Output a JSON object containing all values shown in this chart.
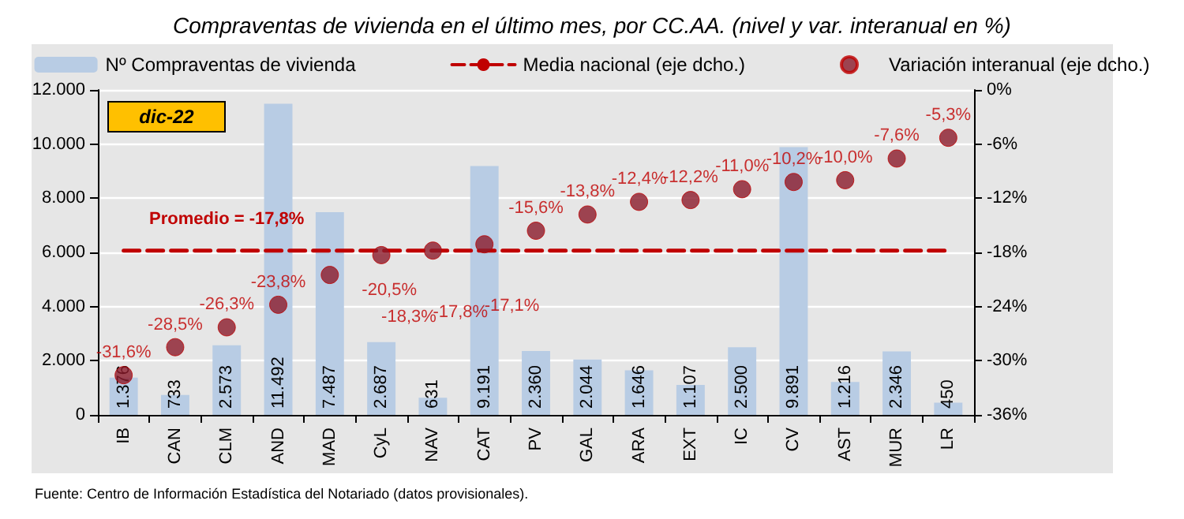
{
  "chart_data": {
    "type": "bar",
    "title": "Compraventas de vivienda en el último mes, por CC.AA. (nivel y var. interanual en %)",
    "categories": [
      "IB",
      "CAN",
      "CLM",
      "AND",
      "MAD",
      "CyL",
      "NAV",
      "CAT",
      "PV",
      "GAL",
      "ARA",
      "EXT",
      "IC",
      "CV",
      "AST",
      "MUR",
      "LR"
    ],
    "series": [
      {
        "name": "Nº Compraventas de vivienda",
        "color": "#b8cce4",
        "values": [
          1376,
          733,
          2573,
          11492,
          7487,
          2687,
          631,
          9191,
          2360,
          2044,
          1646,
          1107,
          2500,
          9891,
          1216,
          2346,
          450
        ],
        "value_labels": [
          "1.376",
          "733",
          "2.573",
          "11.492",
          "7.487",
          "2.687",
          "631",
          "9.191",
          "2.360",
          "2.044",
          "1.646",
          "1.107",
          "2.500",
          "9.891",
          "1.216",
          "2.346",
          "450"
        ]
      },
      {
        "name": "Media nacional (eje dcho.)",
        "type": "line",
        "axis": "y2",
        "color": "#c00000",
        "line_style": "dashed",
        "values": [
          -17.8,
          -17.8,
          -17.8,
          -17.8,
          -17.8,
          -17.8,
          -17.8,
          -17.8,
          -17.8,
          -17.8,
          -17.8,
          -17.8,
          -17.8,
          -17.8,
          -17.8,
          -17.8,
          -17.8
        ]
      },
      {
        "name": "Variación interanual (eje dcho.)",
        "type": "scatter",
        "marker": "circle",
        "axis": "y2",
        "color": "#8b1a2b",
        "values": [
          -31.6,
          -28.5,
          -26.3,
          -23.8,
          -20.5,
          -18.3,
          -17.8,
          -17.1,
          -15.6,
          -13.8,
          -12.4,
          -12.2,
          -11.0,
          -10.2,
          -10.0,
          -7.6,
          -5.3
        ],
        "value_labels": [
          "-31,6%",
          "-28,5%",
          "-26,3%",
          "-23,8%",
          "-20,5%",
          "-18,3%",
          "-17,8%",
          "-17,1%",
          "-15,6%",
          "-13,8%",
          "-12,4%",
          "-12,2%",
          "-11,0%",
          "-10,2%",
          "-10,0%",
          "-7,6%",
          "-5,3%"
        ]
      }
    ],
    "ylim": [
      0,
      12000
    ],
    "yticks": [
      0,
      {
        "value": 2000,
        "label": "2.000"
      },
      {
        "value": 4000,
        "label": "4.000"
      },
      {
        "value": 6000,
        "label": "6.000"
      },
      {
        "value": 8000,
        "label": "8.000"
      },
      {
        "value": 10000,
        "label": "10.000"
      },
      {
        "value": 12000,
        "label": "12.000"
      }
    ],
    "y2lim": [
      -36,
      0
    ],
    "y2ticks": [
      {
        "value": -36,
        "label": "-36%"
      },
      {
        "value": -30,
        "label": "-30%"
      },
      {
        "value": -24,
        "label": "-24%"
      },
      {
        "value": -18,
        "label": "-18%"
      },
      {
        "value": -12,
        "label": "-12%"
      },
      {
        "value": -6,
        "label": "-6%"
      },
      {
        "value": 0,
        "label": "0%"
      }
    ],
    "annotations": [
      "dic-22",
      "Promedio = -17,8%",
      "Fuente: Centro de Información Estadística del Notariado (datos provisionales)."
    ],
    "grid": "y",
    "legend": "top"
  }
}
